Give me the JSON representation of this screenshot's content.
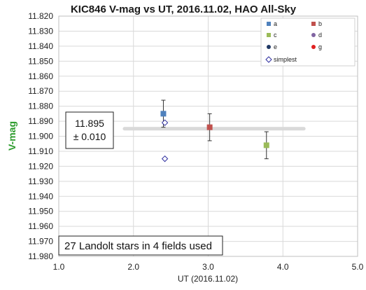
{
  "chart_data": {
    "type": "scatter",
    "title": "KIC846 V-mag vs UT, 2016.11.02, HAO All-Sky",
    "xlabel": "UT (2016.11.02)",
    "ylabel": "V-mag",
    "xlim": [
      1.0,
      5.0
    ],
    "ylim": [
      11.82,
      11.98
    ],
    "y_inverted": true,
    "x_ticks": [
      "1.0",
      "2.0",
      "3.0",
      "4.0",
      "5.0"
    ],
    "y_ticks": [
      "11.820",
      "11.830",
      "11.840",
      "11.850",
      "11.860",
      "11.870",
      "11.880",
      "11.890",
      "11.900",
      "11.910",
      "11.920",
      "11.930",
      "11.940",
      "11.950",
      "11.960",
      "11.970",
      "11.980"
    ],
    "grid": true,
    "legend_position": "top-right",
    "series": [
      {
        "name": "a",
        "marker": "square",
        "color": "#4f81bd",
        "points": [
          {
            "x": 2.4,
            "y": 11.885,
            "err": 0.009
          }
        ]
      },
      {
        "name": "b",
        "marker": "square",
        "color": "#c0504d",
        "points": [
          {
            "x": 3.02,
            "y": 11.894,
            "err": 0.009
          }
        ]
      },
      {
        "name": "c",
        "marker": "square",
        "color": "#9bbb59",
        "points": [
          {
            "x": 3.78,
            "y": 11.906,
            "err": 0.009
          }
        ]
      },
      {
        "name": "d",
        "marker": "circle",
        "color": "#8064a2",
        "points": []
      },
      {
        "name": "e",
        "marker": "circle",
        "color": "#1f3864",
        "points": []
      },
      {
        "name": "g",
        "marker": "circle",
        "color": "#e02020",
        "points": []
      },
      {
        "name": "simplest",
        "marker": "diamond-open",
        "color": "#3030a0",
        "points": [
          {
            "x": 2.42,
            "y": 11.891
          },
          {
            "x": 2.42,
            "y": 11.915
          }
        ]
      }
    ],
    "mean_line": {
      "y": 11.895,
      "x_start": 1.88,
      "x_end": 4.28,
      "color": "#d9d9d9"
    },
    "annotation": {
      "line1": "11.895",
      "line2": "± 0.010"
    },
    "footer_note": "27 Landolt stars in 4 fields used"
  }
}
